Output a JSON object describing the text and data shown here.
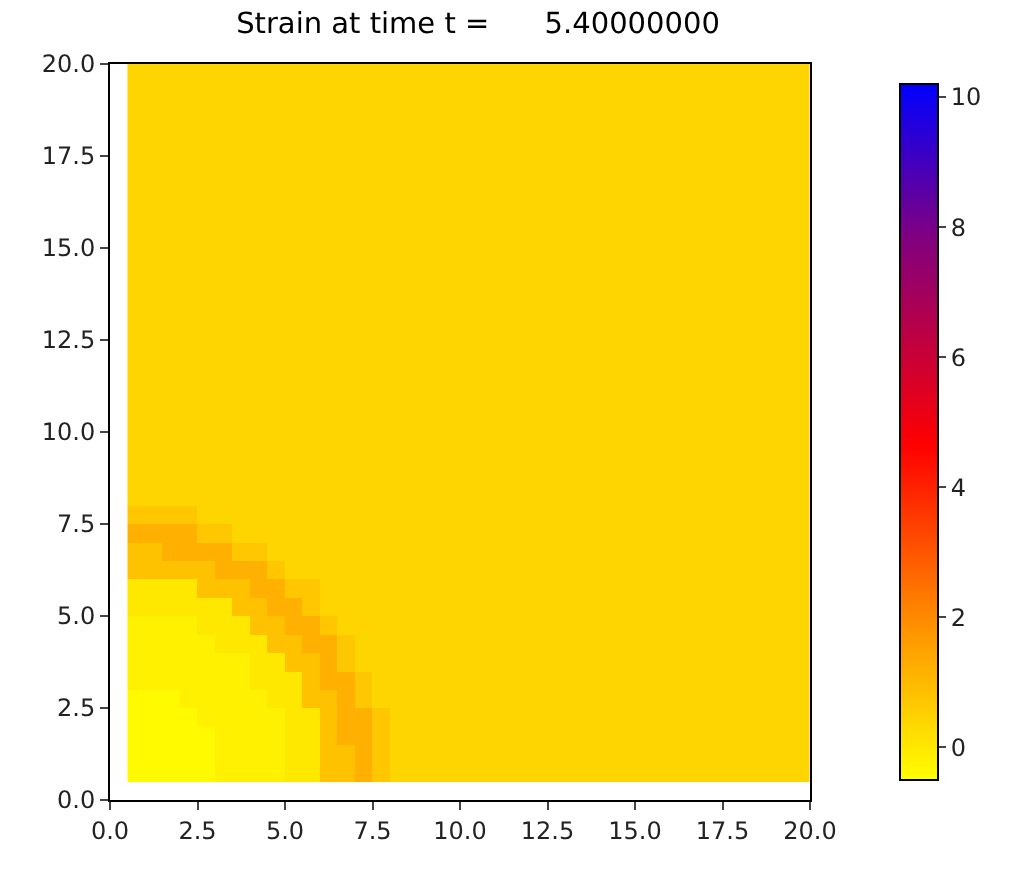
{
  "chart_data": {
    "type": "heatmap",
    "title": "Strain at time t =      5.40000000",
    "x": [
      0.75,
      1.25,
      1.75,
      2.25,
      2.75,
      3.25,
      3.75,
      4.25,
      4.75,
      5.25,
      5.75,
      6.25,
      6.75,
      7.25,
      7.75,
      8.25,
      8.75,
      9.25,
      9.75,
      10.25,
      10.75,
      11.25,
      11.75,
      12.25,
      12.75,
      13.25,
      13.75,
      14.25,
      14.75,
      15.25,
      15.75,
      16.25,
      16.75,
      17.25,
      17.75,
      18.25,
      18.75,
      19.25,
      19.75
    ],
    "y": [
      19.75,
      19.25,
      18.75,
      18.25,
      17.75,
      17.25,
      16.75,
      16.25,
      15.75,
      15.25,
      14.75,
      14.25,
      13.75,
      13.25,
      12.75,
      12.25,
      11.75,
      11.25,
      10.75,
      10.25,
      9.75,
      9.25,
      8.75,
      8.25,
      7.75,
      7.25,
      6.75,
      6.25,
      5.75,
      5.25,
      4.75,
      4.25,
      3.75,
      3.25,
      2.75,
      2.25,
      1.75,
      1.25,
      0.75
    ],
    "cells": [
      [
        0.4,
        0.4,
        0.4,
        0.4,
        0.4,
        0.4,
        0.4,
        0.4,
        0.4,
        0.4,
        0.4,
        0.4,
        0.4,
        0.4,
        0.4,
        0.4,
        0.4,
        0.4,
        0.4,
        0.4,
        0.4,
        0.4,
        0.4,
        0.4,
        0.4,
        0.4,
        0.4,
        0.4,
        0.4,
        0.4,
        0.4,
        0.4,
        0.4,
        0.4,
        0.4,
        0.4,
        0.4,
        0.4,
        0.4
      ],
      [
        0.4,
        0.4,
        0.4,
        0.4,
        0.4,
        0.4,
        0.4,
        0.4,
        0.4,
        0.4,
        0.4,
        0.4,
        0.4,
        0.4,
        0.4,
        0.4,
        0.4,
        0.4,
        0.4,
        0.4,
        0.4,
        0.4,
        0.4,
        0.4,
        0.4,
        0.4,
        0.4,
        0.4,
        0.4,
        0.4,
        0.4,
        0.4,
        0.4,
        0.4,
        0.4,
        0.4,
        0.4,
        0.4,
        0.4
      ],
      [
        0.4,
        0.4,
        0.4,
        0.4,
        0.4,
        0.4,
        0.4,
        0.4,
        0.4,
        0.4,
        0.4,
        0.4,
        0.4,
        0.4,
        0.4,
        0.4,
        0.4,
        0.4,
        0.4,
        0.4,
        0.4,
        0.4,
        0.4,
        0.4,
        0.4,
        0.4,
        0.4,
        0.4,
        0.4,
        0.4,
        0.4,
        0.4,
        0.4,
        0.4,
        0.4,
        0.4,
        0.4,
        0.4,
        0.4
      ],
      [
        0.4,
        0.4,
        0.4,
        0.4,
        0.4,
        0.4,
        0.4,
        0.4,
        0.4,
        0.4,
        0.4,
        0.4,
        0.4,
        0.4,
        0.4,
        0.4,
        0.4,
        0.4,
        0.4,
        0.4,
        0.4,
        0.4,
        0.4,
        0.4,
        0.4,
        0.4,
        0.4,
        0.4,
        0.4,
        0.4,
        0.4,
        0.4,
        0.4,
        0.4,
        0.4,
        0.4,
        0.4,
        0.4,
        0.4
      ],
      [
        0.4,
        0.4,
        0.4,
        0.4,
        0.4,
        0.4,
        0.4,
        0.4,
        0.4,
        0.4,
        0.4,
        0.4,
        0.4,
        0.4,
        0.4,
        0.4,
        0.4,
        0.4,
        0.4,
        0.4,
        0.4,
        0.4,
        0.4,
        0.4,
        0.4,
        0.4,
        0.4,
        0.4,
        0.4,
        0.4,
        0.4,
        0.4,
        0.4,
        0.4,
        0.4,
        0.4,
        0.4,
        0.4,
        0.4
      ],
      [
        0.4,
        0.4,
        0.4,
        0.4,
        0.4,
        0.4,
        0.4,
        0.4,
        0.4,
        0.4,
        0.4,
        0.4,
        0.4,
        0.4,
        0.4,
        0.4,
        0.4,
        0.4,
        0.4,
        0.4,
        0.4,
        0.4,
        0.4,
        0.4,
        0.4,
        0.4,
        0.4,
        0.4,
        0.4,
        0.4,
        0.4,
        0.4,
        0.4,
        0.4,
        0.4,
        0.4,
        0.4,
        0.4,
        0.4
      ],
      [
        0.4,
        0.4,
        0.4,
        0.4,
        0.4,
        0.4,
        0.4,
        0.4,
        0.4,
        0.4,
        0.4,
        0.4,
        0.4,
        0.4,
        0.4,
        0.4,
        0.4,
        0.4,
        0.4,
        0.4,
        0.4,
        0.4,
        0.4,
        0.4,
        0.4,
        0.4,
        0.4,
        0.4,
        0.4,
        0.4,
        0.4,
        0.4,
        0.4,
        0.4,
        0.4,
        0.4,
        0.4,
        0.4,
        0.4
      ],
      [
        0.4,
        0.4,
        0.4,
        0.4,
        0.4,
        0.4,
        0.4,
        0.4,
        0.4,
        0.4,
        0.4,
        0.4,
        0.4,
        0.4,
        0.4,
        0.4,
        0.4,
        0.4,
        0.4,
        0.4,
        0.4,
        0.4,
        0.4,
        0.4,
        0.4,
        0.4,
        0.4,
        0.4,
        0.4,
        0.4,
        0.4,
        0.4,
        0.4,
        0.4,
        0.4,
        0.4,
        0.4,
        0.4,
        0.4
      ],
      [
        0.4,
        0.4,
        0.4,
        0.4,
        0.4,
        0.4,
        0.4,
        0.4,
        0.4,
        0.4,
        0.4,
        0.4,
        0.4,
        0.4,
        0.4,
        0.4,
        0.4,
        0.4,
        0.4,
        0.4,
        0.4,
        0.4,
        0.4,
        0.4,
        0.4,
        0.4,
        0.4,
        0.4,
        0.4,
        0.4,
        0.4,
        0.4,
        0.4,
        0.4,
        0.4,
        0.4,
        0.4,
        0.4,
        0.4
      ],
      [
        0.4,
        0.4,
        0.4,
        0.4,
        0.4,
        0.4,
        0.4,
        0.4,
        0.4,
        0.4,
        0.4,
        0.4,
        0.4,
        0.4,
        0.4,
        0.4,
        0.4,
        0.4,
        0.4,
        0.4,
        0.4,
        0.4,
        0.4,
        0.4,
        0.4,
        0.4,
        0.4,
        0.4,
        0.4,
        0.4,
        0.4,
        0.4,
        0.4,
        0.4,
        0.4,
        0.4,
        0.4,
        0.4,
        0.4
      ],
      [
        0.4,
        0.4,
        0.4,
        0.4,
        0.4,
        0.4,
        0.4,
        0.4,
        0.4,
        0.4,
        0.4,
        0.4,
        0.4,
        0.4,
        0.4,
        0.4,
        0.4,
        0.4,
        0.4,
        0.4,
        0.4,
        0.4,
        0.4,
        0.4,
        0.4,
        0.4,
        0.4,
        0.4,
        0.4,
        0.4,
        0.4,
        0.4,
        0.4,
        0.4,
        0.4,
        0.4,
        0.4,
        0.4,
        0.4
      ],
      [
        0.4,
        0.4,
        0.4,
        0.4,
        0.4,
        0.4,
        0.4,
        0.4,
        0.4,
        0.4,
        0.4,
        0.4,
        0.4,
        0.4,
        0.4,
        0.4,
        0.4,
        0.4,
        0.4,
        0.4,
        0.4,
        0.4,
        0.4,
        0.4,
        0.4,
        0.4,
        0.4,
        0.4,
        0.4,
        0.4,
        0.4,
        0.4,
        0.4,
        0.4,
        0.4,
        0.4,
        0.4,
        0.4,
        0.4
      ],
      [
        0.4,
        0.4,
        0.4,
        0.4,
        0.4,
        0.4,
        0.4,
        0.4,
        0.4,
        0.4,
        0.4,
        0.4,
        0.4,
        0.4,
        0.4,
        0.4,
        0.4,
        0.4,
        0.4,
        0.4,
        0.4,
        0.4,
        0.4,
        0.4,
        0.4,
        0.4,
        0.4,
        0.4,
        0.4,
        0.4,
        0.4,
        0.4,
        0.4,
        0.4,
        0.4,
        0.4,
        0.4,
        0.4,
        0.4
      ],
      [
        0.4,
        0.4,
        0.4,
        0.4,
        0.4,
        0.4,
        0.4,
        0.4,
        0.4,
        0.4,
        0.4,
        0.4,
        0.4,
        0.4,
        0.4,
        0.4,
        0.4,
        0.4,
        0.4,
        0.4,
        0.4,
        0.4,
        0.4,
        0.4,
        0.4,
        0.4,
        0.4,
        0.4,
        0.4,
        0.4,
        0.4,
        0.4,
        0.4,
        0.4,
        0.4,
        0.4,
        0.4,
        0.4,
        0.4
      ],
      [
        0.4,
        0.4,
        0.4,
        0.4,
        0.4,
        0.4,
        0.4,
        0.4,
        0.4,
        0.4,
        0.4,
        0.4,
        0.4,
        0.4,
        0.4,
        0.4,
        0.4,
        0.4,
        0.4,
        0.4,
        0.4,
        0.4,
        0.4,
        0.4,
        0.4,
        0.4,
        0.4,
        0.4,
        0.4,
        0.4,
        0.4,
        0.4,
        0.4,
        0.4,
        0.4,
        0.4,
        0.4,
        0.4,
        0.4
      ],
      [
        0.4,
        0.4,
        0.4,
        0.4,
        0.4,
        0.4,
        0.4,
        0.4,
        0.4,
        0.4,
        0.4,
        0.4,
        0.4,
        0.4,
        0.4,
        0.4,
        0.4,
        0.4,
        0.4,
        0.4,
        0.4,
        0.4,
        0.4,
        0.4,
        0.4,
        0.4,
        0.4,
        0.4,
        0.4,
        0.4,
        0.4,
        0.4,
        0.4,
        0.4,
        0.4,
        0.4,
        0.4,
        0.4,
        0.4
      ],
      [
        0.4,
        0.4,
        0.4,
        0.4,
        0.4,
        0.4,
        0.4,
        0.4,
        0.4,
        0.4,
        0.4,
        0.4,
        0.4,
        0.4,
        0.4,
        0.4,
        0.4,
        0.4,
        0.4,
        0.4,
        0.4,
        0.4,
        0.4,
        0.4,
        0.4,
        0.4,
        0.4,
        0.4,
        0.4,
        0.4,
        0.4,
        0.4,
        0.4,
        0.4,
        0.4,
        0.4,
        0.4,
        0.4,
        0.4
      ],
      [
        0.4,
        0.4,
        0.4,
        0.4,
        0.4,
        0.4,
        0.4,
        0.4,
        0.4,
        0.4,
        0.4,
        0.4,
        0.4,
        0.4,
        0.4,
        0.4,
        0.4,
        0.4,
        0.4,
        0.4,
        0.4,
        0.4,
        0.4,
        0.4,
        0.4,
        0.4,
        0.4,
        0.4,
        0.4,
        0.4,
        0.4,
        0.4,
        0.4,
        0.4,
        0.4,
        0.4,
        0.4,
        0.4,
        0.4
      ],
      [
        0.4,
        0.4,
        0.4,
        0.4,
        0.4,
        0.4,
        0.4,
        0.4,
        0.4,
        0.4,
        0.4,
        0.4,
        0.4,
        0.4,
        0.4,
        0.4,
        0.4,
        0.4,
        0.4,
        0.4,
        0.4,
        0.4,
        0.4,
        0.4,
        0.4,
        0.4,
        0.4,
        0.4,
        0.4,
        0.4,
        0.4,
        0.4,
        0.4,
        0.4,
        0.4,
        0.4,
        0.4,
        0.4,
        0.4
      ],
      [
        0.4,
        0.4,
        0.4,
        0.4,
        0.4,
        0.4,
        0.4,
        0.4,
        0.4,
        0.4,
        0.4,
        0.4,
        0.4,
        0.4,
        0.4,
        0.4,
        0.4,
        0.4,
        0.4,
        0.4,
        0.4,
        0.4,
        0.4,
        0.4,
        0.4,
        0.4,
        0.4,
        0.4,
        0.4,
        0.4,
        0.4,
        0.4,
        0.4,
        0.4,
        0.4,
        0.4,
        0.4,
        0.4,
        0.4
      ],
      [
        0.4,
        0.4,
        0.4,
        0.4,
        0.4,
        0.4,
        0.4,
        0.4,
        0.4,
        0.4,
        0.4,
        0.4,
        0.4,
        0.4,
        0.4,
        0.4,
        0.4,
        0.4,
        0.4,
        0.4,
        0.4,
        0.4,
        0.4,
        0.4,
        0.4,
        0.4,
        0.4,
        0.4,
        0.4,
        0.4,
        0.4,
        0.4,
        0.4,
        0.4,
        0.4,
        0.4,
        0.4,
        0.4,
        0.4
      ],
      [
        0.4,
        0.4,
        0.4,
        0.4,
        0.4,
        0.4,
        0.4,
        0.4,
        0.4,
        0.4,
        0.4,
        0.4,
        0.4,
        0.4,
        0.4,
        0.4,
        0.4,
        0.4,
        0.4,
        0.4,
        0.4,
        0.4,
        0.4,
        0.4,
        0.4,
        0.4,
        0.4,
        0.4,
        0.4,
        0.4,
        0.4,
        0.4,
        0.4,
        0.4,
        0.4,
        0.4,
        0.4,
        0.4,
        0.4
      ],
      [
        0.4,
        0.4,
        0.4,
        0.4,
        0.4,
        0.4,
        0.4,
        0.4,
        0.4,
        0.4,
        0.4,
        0.4,
        0.4,
        0.4,
        0.4,
        0.4,
        0.4,
        0.4,
        0.4,
        0.4,
        0.4,
        0.4,
        0.4,
        0.4,
        0.4,
        0.4,
        0.4,
        0.4,
        0.4,
        0.4,
        0.4,
        0.4,
        0.4,
        0.4,
        0.4,
        0.4,
        0.4,
        0.4,
        0.4
      ],
      [
        0.4,
        0.4,
        0.4,
        0.4,
        0.4,
        0.4,
        0.4,
        0.4,
        0.4,
        0.4,
        0.4,
        0.4,
        0.4,
        0.4,
        0.4,
        0.4,
        0.4,
        0.4,
        0.4,
        0.4,
        0.4,
        0.4,
        0.4,
        0.4,
        0.4,
        0.4,
        0.4,
        0.4,
        0.4,
        0.4,
        0.4,
        0.4,
        0.4,
        0.4,
        0.4,
        0.4,
        0.4,
        0.4,
        0.4
      ],
      [
        0.7,
        0.7,
        0.7,
        0.7,
        0.4,
        0.4,
        0.4,
        0.4,
        0.4,
        0.4,
        0.4,
        0.4,
        0.4,
        0.4,
        0.4,
        0.4,
        0.4,
        0.4,
        0.4,
        0.4,
        0.4,
        0.4,
        0.4,
        0.4,
        0.4,
        0.4,
        0.4,
        0.4,
        0.4,
        0.4,
        0.4,
        0.4,
        0.4,
        0.4,
        0.4,
        0.4,
        0.4,
        0.4,
        0.4
      ],
      [
        1.2,
        1.2,
        1.2,
        1.2,
        0.7,
        0.7,
        0.4,
        0.4,
        0.4,
        0.4,
        0.4,
        0.4,
        0.4,
        0.4,
        0.4,
        0.4,
        0.4,
        0.4,
        0.4,
        0.4,
        0.4,
        0.4,
        0.4,
        0.4,
        0.4,
        0.4,
        0.4,
        0.4,
        0.4,
        0.4,
        0.4,
        0.4,
        0.4,
        0.4,
        0.4,
        0.4,
        0.4,
        0.4,
        0.4
      ],
      [
        0.8,
        0.8,
        1.2,
        1.2,
        1.2,
        1.2,
        0.7,
        0.7,
        0.4,
        0.4,
        0.4,
        0.4,
        0.4,
        0.4,
        0.4,
        0.4,
        0.4,
        0.4,
        0.4,
        0.4,
        0.4,
        0.4,
        0.4,
        0.4,
        0.4,
        0.4,
        0.4,
        0.4,
        0.4,
        0.4,
        0.4,
        0.4,
        0.4,
        0.4,
        0.4,
        0.4,
        0.4,
        0.4,
        0.4
      ],
      [
        0.8,
        0.8,
        0.8,
        0.8,
        0.8,
        1.2,
        1.2,
        1.2,
        0.7,
        0.4,
        0.4,
        0.4,
        0.4,
        0.4,
        0.4,
        0.4,
        0.4,
        0.4,
        0.4,
        0.4,
        0.4,
        0.4,
        0.4,
        0.4,
        0.4,
        0.4,
        0.4,
        0.4,
        0.4,
        0.4,
        0.4,
        0.4,
        0.4,
        0.4,
        0.4,
        0.4,
        0.4,
        0.4,
        0.4
      ],
      [
        0,
        0,
        0,
        0,
        0.8,
        0.8,
        0.8,
        1.2,
        1.2,
        0.7,
        0.7,
        0.4,
        0.4,
        0.4,
        0.4,
        0.4,
        0.4,
        0.4,
        0.4,
        0.4,
        0.4,
        0.4,
        0.4,
        0.4,
        0.4,
        0.4,
        0.4,
        0.4,
        0.4,
        0.4,
        0.4,
        0.4,
        0.4,
        0.4,
        0.4,
        0.4,
        0.4,
        0.4,
        0.4
      ],
      [
        0,
        0,
        0,
        0,
        0,
        0,
        0.8,
        0.8,
        1.2,
        1.2,
        0.7,
        0.4,
        0.4,
        0.4,
        0.4,
        0.4,
        0.4,
        0.4,
        0.4,
        0.4,
        0.4,
        0.4,
        0.4,
        0.4,
        0.4,
        0.4,
        0.4,
        0.4,
        0.4,
        0.4,
        0.4,
        0.4,
        0.4,
        0.4,
        0.4,
        0.4,
        0.4,
        0.4,
        0.4
      ],
      [
        -0.2,
        -0.2,
        -0.2,
        -0.2,
        0,
        0,
        0,
        0.8,
        0.8,
        1.2,
        1.2,
        0.7,
        0.4,
        0.4,
        0.4,
        0.4,
        0.4,
        0.4,
        0.4,
        0.4,
        0.4,
        0.4,
        0.4,
        0.4,
        0.4,
        0.4,
        0.4,
        0.4,
        0.4,
        0.4,
        0.4,
        0.4,
        0.4,
        0.4,
        0.4,
        0.4,
        0.4,
        0.4,
        0.4
      ],
      [
        -0.2,
        -0.2,
        -0.2,
        -0.2,
        -0.2,
        0,
        0,
        0,
        0.8,
        0.8,
        1.2,
        1.2,
        0.7,
        0.4,
        0.4,
        0.4,
        0.4,
        0.4,
        0.4,
        0.4,
        0.4,
        0.4,
        0.4,
        0.4,
        0.4,
        0.4,
        0.4,
        0.4,
        0.4,
        0.4,
        0.4,
        0.4,
        0.4,
        0.4,
        0.4,
        0.4,
        0.4,
        0.4,
        0.4
      ],
      [
        -0.2,
        -0.2,
        -0.2,
        -0.2,
        -0.2,
        -0.2,
        -0.2,
        0,
        0,
        0.8,
        0.8,
        1.2,
        0.7,
        0.4,
        0.4,
        0.4,
        0.4,
        0.4,
        0.4,
        0.4,
        0.4,
        0.4,
        0.4,
        0.4,
        0.4,
        0.4,
        0.4,
        0.4,
        0.4,
        0.4,
        0.4,
        0.4,
        0.4,
        0.4,
        0.4,
        0.4,
        0.4,
        0.4,
        0.4
      ],
      [
        -0.2,
        -0.2,
        -0.2,
        -0.2,
        -0.2,
        -0.2,
        -0.2,
        0,
        0,
        0,
        0.8,
        1.2,
        1.2,
        0.7,
        0.4,
        0.4,
        0.4,
        0.4,
        0.4,
        0.4,
        0.4,
        0.4,
        0.4,
        0.4,
        0.4,
        0.4,
        0.4,
        0.4,
        0.4,
        0.4,
        0.4,
        0.4,
        0.4,
        0.4,
        0.4,
        0.4,
        0.4,
        0.4,
        0.4
      ],
      [
        -0.4,
        -0.4,
        -0.4,
        -0.2,
        -0.2,
        -0.2,
        -0.2,
        -0.2,
        0,
        0,
        0.8,
        0.8,
        1.2,
        0.7,
        0.4,
        0.4,
        0.4,
        0.4,
        0.4,
        0.4,
        0.4,
        0.4,
        0.4,
        0.4,
        0.4,
        0.4,
        0.4,
        0.4,
        0.4,
        0.4,
        0.4,
        0.4,
        0.4,
        0.4,
        0.4,
        0.4,
        0.4,
        0.4,
        0.4
      ],
      [
        -0.4,
        -0.4,
        -0.4,
        -0.4,
        -0.2,
        -0.2,
        -0.2,
        -0.2,
        -0.2,
        0,
        0,
        0.8,
        1.2,
        1.2,
        0.7,
        0.4,
        0.4,
        0.4,
        0.4,
        0.4,
        0.4,
        0.4,
        0.4,
        0.4,
        0.4,
        0.4,
        0.4,
        0.4,
        0.4,
        0.4,
        0.4,
        0.4,
        0.4,
        0.4,
        0.4,
        0.4,
        0.4,
        0.4,
        0.4
      ],
      [
        -0.4,
        -0.4,
        -0.4,
        -0.4,
        -0.4,
        -0.2,
        -0.2,
        -0.2,
        -0.2,
        0,
        0,
        0.8,
        1.2,
        1.2,
        0.7,
        0.4,
        0.4,
        0.4,
        0.4,
        0.4,
        0.4,
        0.4,
        0.4,
        0.4,
        0.4,
        0.4,
        0.4,
        0.4,
        0.4,
        0.4,
        0.4,
        0.4,
        0.4,
        0.4,
        0.4,
        0.4,
        0.4,
        0.4,
        0.4
      ],
      [
        -0.4,
        -0.4,
        -0.4,
        -0.4,
        -0.4,
        -0.2,
        -0.2,
        -0.2,
        -0.2,
        0,
        0,
        0.8,
        0.8,
        1.2,
        0.7,
        0.4,
        0.4,
        0.4,
        0.4,
        0.4,
        0.4,
        0.4,
        0.4,
        0.4,
        0.4,
        0.4,
        0.4,
        0.4,
        0.4,
        0.4,
        0.4,
        0.4,
        0.4,
        0.4,
        0.4,
        0.4,
        0.4,
        0.4,
        0.4
      ],
      [
        -0.4,
        -0.4,
        -0.4,
        -0.4,
        -0.4,
        -0.2,
        -0.2,
        -0.2,
        -0.2,
        0,
        0,
        0.8,
        0.8,
        1.2,
        0.7,
        0.4,
        0.4,
        0.4,
        0.4,
        0.4,
        0.4,
        0.4,
        0.4,
        0.4,
        0.4,
        0.4,
        0.4,
        0.4,
        0.4,
        0.4,
        0.4,
        0.4,
        0.4,
        0.4,
        0.4,
        0.4,
        0.4,
        0.4,
        0.4
      ]
    ],
    "xlim": [
      0,
      20
    ],
    "xticks": [
      {
        "value": 0,
        "label": "0.0"
      },
      {
        "value": 2.5,
        "label": "2.5"
      },
      {
        "value": 5,
        "label": "5.0"
      },
      {
        "value": 7.5,
        "label": "7.5"
      },
      {
        "value": 10,
        "label": "10.0"
      },
      {
        "value": 12.5,
        "label": "12.5"
      },
      {
        "value": 15,
        "label": "15.0"
      },
      {
        "value": 17.5,
        "label": "17.5"
      },
      {
        "value": 20,
        "label": "20.0"
      }
    ],
    "ylim": [
      0,
      20
    ],
    "yticks": [
      {
        "value": 0,
        "label": "0.0"
      },
      {
        "value": 2.5,
        "label": "2.5"
      },
      {
        "value": 5,
        "label": "5.0"
      },
      {
        "value": 7.5,
        "label": "7.5"
      },
      {
        "value": 10,
        "label": "10.0"
      },
      {
        "value": 12.5,
        "label": "12.5"
      },
      {
        "value": 15,
        "label": "15.0"
      },
      {
        "value": 17.5,
        "label": "17.5"
      },
      {
        "value": 20,
        "label": "20.0"
      }
    ],
    "clim": [
      -0.5,
      10.2
    ],
    "cticks": [
      0,
      2,
      4,
      6,
      8,
      10
    ],
    "grid": false
  }
}
